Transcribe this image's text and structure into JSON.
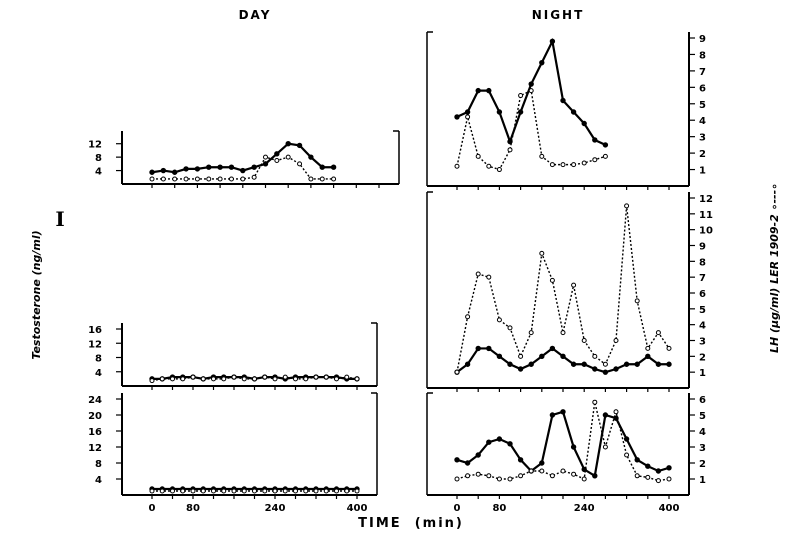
{
  "figure": {
    "headers": {
      "day": "DAY",
      "night": "NIGHT"
    },
    "xlabel": "TIME  (min)",
    "left_ylabel": "Testosterone  (ng/ml)",
    "right_ylabel": "LH (µg/ml) LER 1909-2 ∘---∘",
    "panel_marker": "I",
    "x_ticks": [
      "0",
      "80",
      "240",
      "400"
    ]
  },
  "chart_data": [
    {
      "type": "line",
      "id": "day-1",
      "ylim": [
        0,
        14
      ],
      "left_ticks": [
        "4",
        "8",
        "12"
      ],
      "series": [
        {
          "style": "solid-filled",
          "x": [
            0,
            20,
            40,
            60,
            80,
            100,
            120,
            140,
            160,
            180,
            200,
            220,
            240,
            260,
            280,
            300,
            320
          ],
          "y": [
            3.5,
            4,
            3.5,
            4.5,
            4.5,
            5,
            5,
            5,
            4,
            5,
            6,
            9,
            12,
            11.5,
            8,
            5,
            5
          ]
        },
        {
          "style": "dotted-open",
          "x": [
            0,
            20,
            40,
            60,
            80,
            100,
            120,
            140,
            160,
            180,
            200,
            220,
            240,
            260,
            280,
            300,
            320
          ],
          "y": [
            1.5,
            1.5,
            1.5,
            1.5,
            1.5,
            1.5,
            1.5,
            1.5,
            1.5,
            2,
            8,
            7,
            8,
            6,
            1.5,
            1.5,
            1.5
          ]
        }
      ]
    },
    {
      "type": "line",
      "id": "night-1",
      "ylim": [
        0,
        9
      ],
      "right_ticks": [
        "1",
        "2",
        "3",
        "4",
        "5",
        "6",
        "7",
        "8",
        "9"
      ],
      "series": [
        {
          "style": "solid-filled",
          "x": [
            0,
            20,
            40,
            60,
            80,
            100,
            120,
            140,
            160,
            180,
            200,
            220,
            240,
            260,
            280
          ],
          "y": [
            4.2,
            4.5,
            5.8,
            5.8,
            4.5,
            2.7,
            4.5,
            6.2,
            7.5,
            8.8,
            5.2,
            4.5,
            3.8,
            2.8,
            2.5
          ]
        },
        {
          "style": "dotted-open",
          "x": [
            0,
            20,
            40,
            60,
            80,
            100,
            120,
            140,
            160,
            180,
            200,
            220,
            240,
            260,
            280
          ],
          "y": [
            1.2,
            4.2,
            1.8,
            1.2,
            1,
            2.2,
            5.5,
            5.8,
            1.8,
            1.3,
            1.3,
            1.3,
            1.4,
            1.6,
            1.8
          ]
        }
      ]
    },
    {
      "type": "line",
      "id": "day-2",
      "ylim": [
        0,
        16
      ],
      "left_ticks": [
        "4",
        "8",
        "12",
        "16"
      ],
      "series": [
        {
          "style": "solid-filled",
          "x": [
            0,
            20,
            40,
            60,
            80,
            100,
            120,
            140,
            160,
            180,
            200,
            220,
            240,
            260,
            280,
            300,
            320,
            340,
            360,
            380,
            400
          ],
          "y": [
            2,
            2,
            2.5,
            2.5,
            2.5,
            2,
            2.5,
            2.5,
            2.5,
            2.5,
            2,
            2.5,
            2.5,
            2,
            2.5,
            2.5,
            2.5,
            2.5,
            2.5,
            2,
            2
          ]
        },
        {
          "style": "dotted-open",
          "x": [
            0,
            20,
            40,
            60,
            80,
            100,
            120,
            140,
            160,
            180,
            200,
            220,
            240,
            260,
            280,
            300,
            320,
            340,
            360,
            380,
            400
          ],
          "y": [
            1.5,
            2,
            2,
            2,
            2.5,
            2,
            2,
            2,
            2.5,
            2,
            2,
            2.5,
            2,
            2.5,
            2,
            2,
            2.5,
            2.5,
            2,
            2.5,
            2
          ]
        }
      ]
    },
    {
      "type": "line",
      "id": "night-2",
      "ylim": [
        0,
        12
      ],
      "right_ticks": [
        "1",
        "2",
        "3",
        "4",
        "5",
        "6",
        "7",
        "8",
        "9",
        "10",
        "11",
        "12"
      ],
      "series": [
        {
          "style": "solid-filled",
          "x": [
            0,
            20,
            40,
            60,
            80,
            100,
            120,
            140,
            160,
            180,
            200,
            220,
            240,
            260,
            280,
            300,
            320,
            340,
            360,
            380,
            400
          ],
          "y": [
            1,
            1.5,
            2.5,
            2.5,
            2,
            1.5,
            1.2,
            1.5,
            2,
            2.5,
            2,
            1.5,
            1.5,
            1.2,
            1,
            1.2,
            1.5,
            1.5,
            2,
            1.5,
            1.5
          ]
        },
        {
          "style": "dotted-open",
          "x": [
            0,
            20,
            40,
            60,
            80,
            100,
            120,
            140,
            160,
            180,
            200,
            220,
            240,
            260,
            280,
            300,
            320,
            340,
            360,
            380,
            400
          ],
          "y": [
            1,
            4.5,
            7.2,
            7,
            4.3,
            3.8,
            2,
            3.5,
            8.5,
            6.8,
            3.5,
            6.5,
            3,
            2,
            1.5,
            3,
            11.5,
            5.5,
            2.5,
            3.5,
            2.5
          ]
        }
      ]
    },
    {
      "type": "line",
      "id": "day-3",
      "ylim": [
        0,
        24
      ],
      "left_ticks": [
        "4",
        "8",
        "12",
        "16",
        "20",
        "24"
      ],
      "series": [
        {
          "style": "solid-filled",
          "x": [
            0,
            20,
            40,
            60,
            80,
            100,
            120,
            140,
            160,
            180,
            200,
            220,
            240,
            260,
            280,
            300,
            320,
            340,
            360,
            380,
            400
          ],
          "y": [
            1.5,
            1.5,
            1.5,
            1.5,
            1.5,
            1.5,
            1.5,
            1.5,
            1.5,
            1.5,
            1.5,
            1.5,
            1.5,
            1.5,
            1.5,
            1.5,
            1.5,
            1.5,
            1.5,
            1.5,
            1.5
          ]
        },
        {
          "style": "dotted-open",
          "x": [
            0,
            20,
            40,
            60,
            80,
            100,
            120,
            140,
            160,
            180,
            200,
            220,
            240,
            260,
            280,
            300,
            320,
            340,
            360,
            380,
            400
          ],
          "y": [
            1,
            1,
            1,
            1,
            1,
            1,
            1,
            1,
            1,
            1,
            1,
            1,
            1,
            1,
            1,
            1,
            1,
            1,
            1,
            1,
            1
          ]
        }
      ]
    },
    {
      "type": "line",
      "id": "night-3",
      "ylim": [
        0,
        6
      ],
      "right_ticks": [
        "1",
        "2",
        "3",
        "4",
        "5",
        "6"
      ],
      "series": [
        {
          "style": "solid-filled",
          "x": [
            0,
            20,
            40,
            60,
            80,
            100,
            120,
            140,
            160,
            180,
            200,
            220,
            240,
            260,
            280,
            300,
            320,
            340,
            360,
            380,
            400
          ],
          "y": [
            2.2,
            2,
            2.5,
            3.3,
            3.5,
            3.2,
            2.2,
            1.5,
            2,
            5,
            5.2,
            3,
            1.6,
            1.2,
            5,
            4.8,
            3.5,
            2.2,
            1.8,
            1.5,
            1.7
          ]
        },
        {
          "style": "dotted-open",
          "x": [
            0,
            20,
            40,
            60,
            80,
            100,
            120,
            140,
            160,
            180,
            200,
            220,
            240,
            260,
            280,
            300,
            320,
            340,
            360,
            380,
            400
          ],
          "y": [
            1,
            1.2,
            1.3,
            1.2,
            1,
            1,
            1.2,
            1.5,
            1.5,
            1.2,
            1.5,
            1.3,
            1,
            5.8,
            3,
            5.2,
            2.5,
            1.2,
            1.1,
            0.9,
            1
          ]
        }
      ]
    }
  ]
}
